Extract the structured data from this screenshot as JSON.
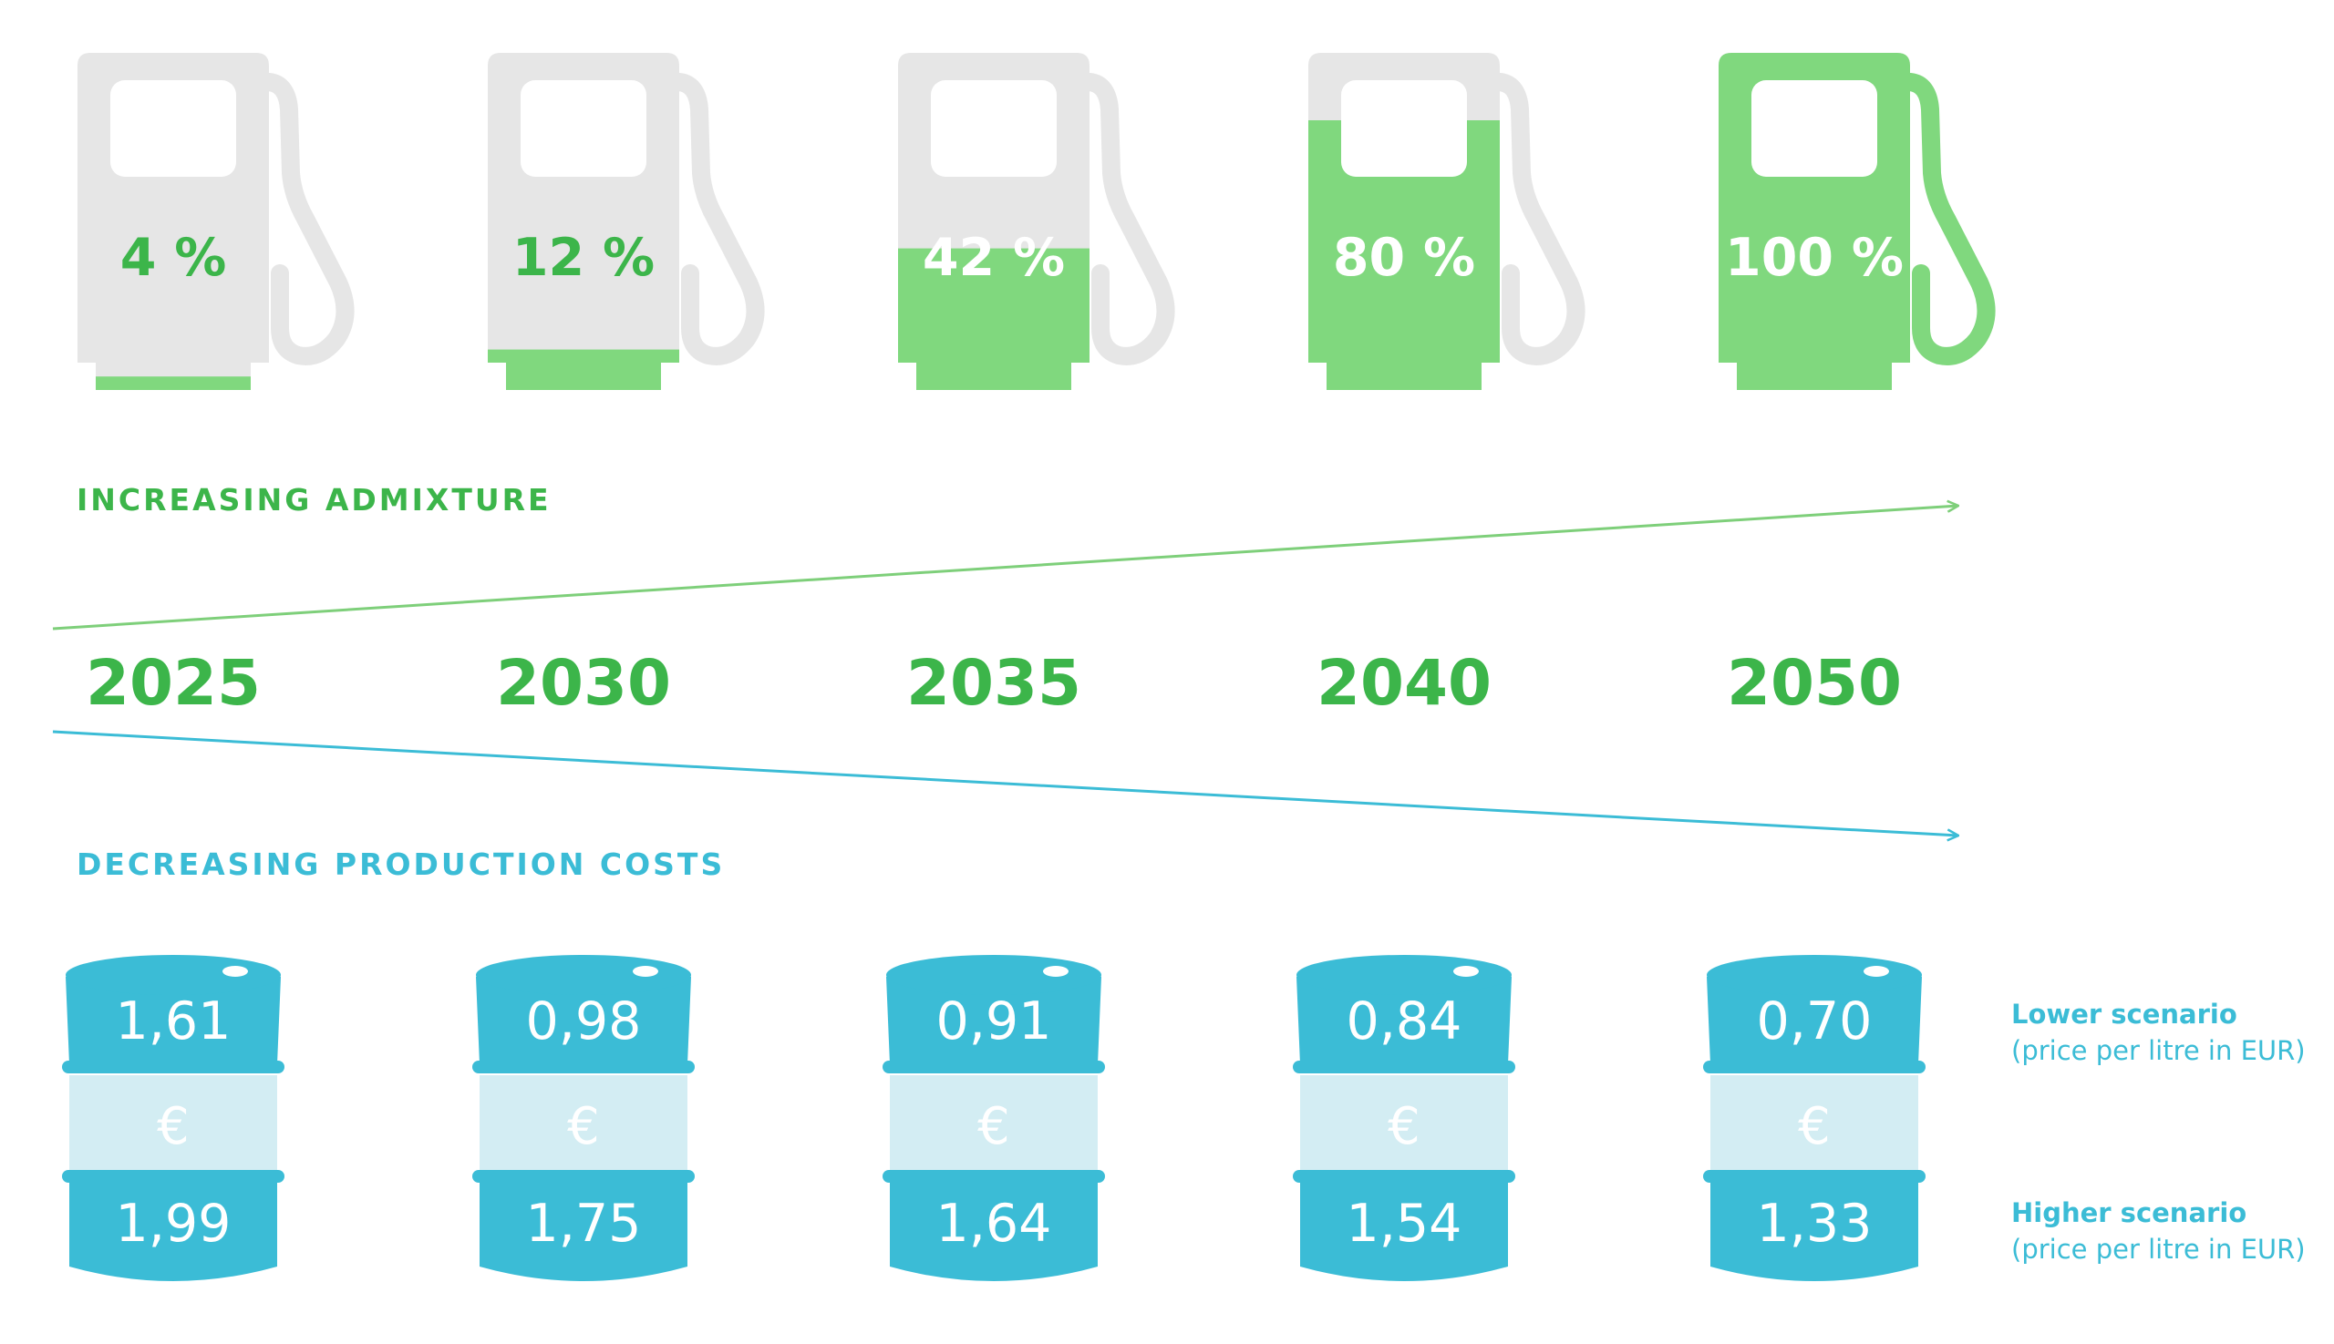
{
  "colors": {
    "green": "#3cb54a",
    "green_light": "#80d87e",
    "pump_gray": "#e6e6e6",
    "blue": "#3bbcd6",
    "blue_light": "#d3edf3",
    "arrow_green": "#7ecf7a",
    "arrow_blue": "#3bbcd6"
  },
  "admixture": {
    "heading": "INCREASING ADMIXTURE",
    "pumps": [
      {
        "label": "4 %",
        "fill": 0.04
      },
      {
        "label": "12 %",
        "fill": 0.12
      },
      {
        "label": "42 %",
        "fill": 0.42
      },
      {
        "label": "80 %",
        "fill": 0.8
      },
      {
        "label": "100 %",
        "fill": 1.0
      }
    ]
  },
  "years": [
    "2025",
    "2030",
    "2035",
    "2040",
    "2050"
  ],
  "costs": {
    "heading": "DECREASING PRODUCTION COSTS",
    "currency_symbol": "€",
    "lower": [
      "1,61",
      "0,98",
      "0,91",
      "0,84",
      "0,70"
    ],
    "higher": [
      "1,99",
      "1,75",
      "1,64",
      "1,54",
      "1,33"
    ]
  },
  "legend": {
    "lower_title": "Lower scenario",
    "lower_sub": "(price per litre in EUR)",
    "higher_title": "Higher scenario",
    "higher_sub": "(price per litre in EUR)"
  }
}
